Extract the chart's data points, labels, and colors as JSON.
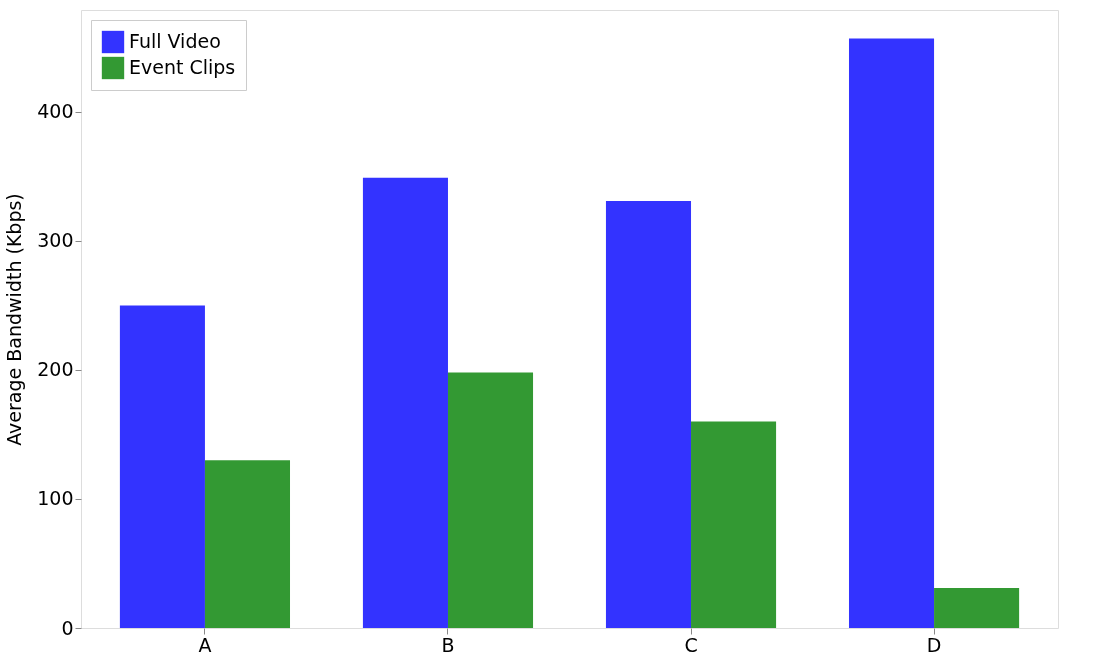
{
  "chart_data": {
    "type": "bar",
    "categories": [
      "A",
      "B",
      "C",
      "D"
    ],
    "series": [
      {
        "name": "Full Video",
        "color": "#3333ff",
        "values": [
          250,
          349,
          331,
          457
        ]
      },
      {
        "name": "Event Clips",
        "color": "#339933",
        "values": [
          130,
          198,
          160,
          31
        ]
      }
    ],
    "ylabel": "Average Bandwidth (Kbps)",
    "ylim": [
      0,
      479
    ],
    "yticks": [
      0,
      100,
      200,
      300,
      400
    ],
    "grid": false,
    "legend": "top left"
  }
}
